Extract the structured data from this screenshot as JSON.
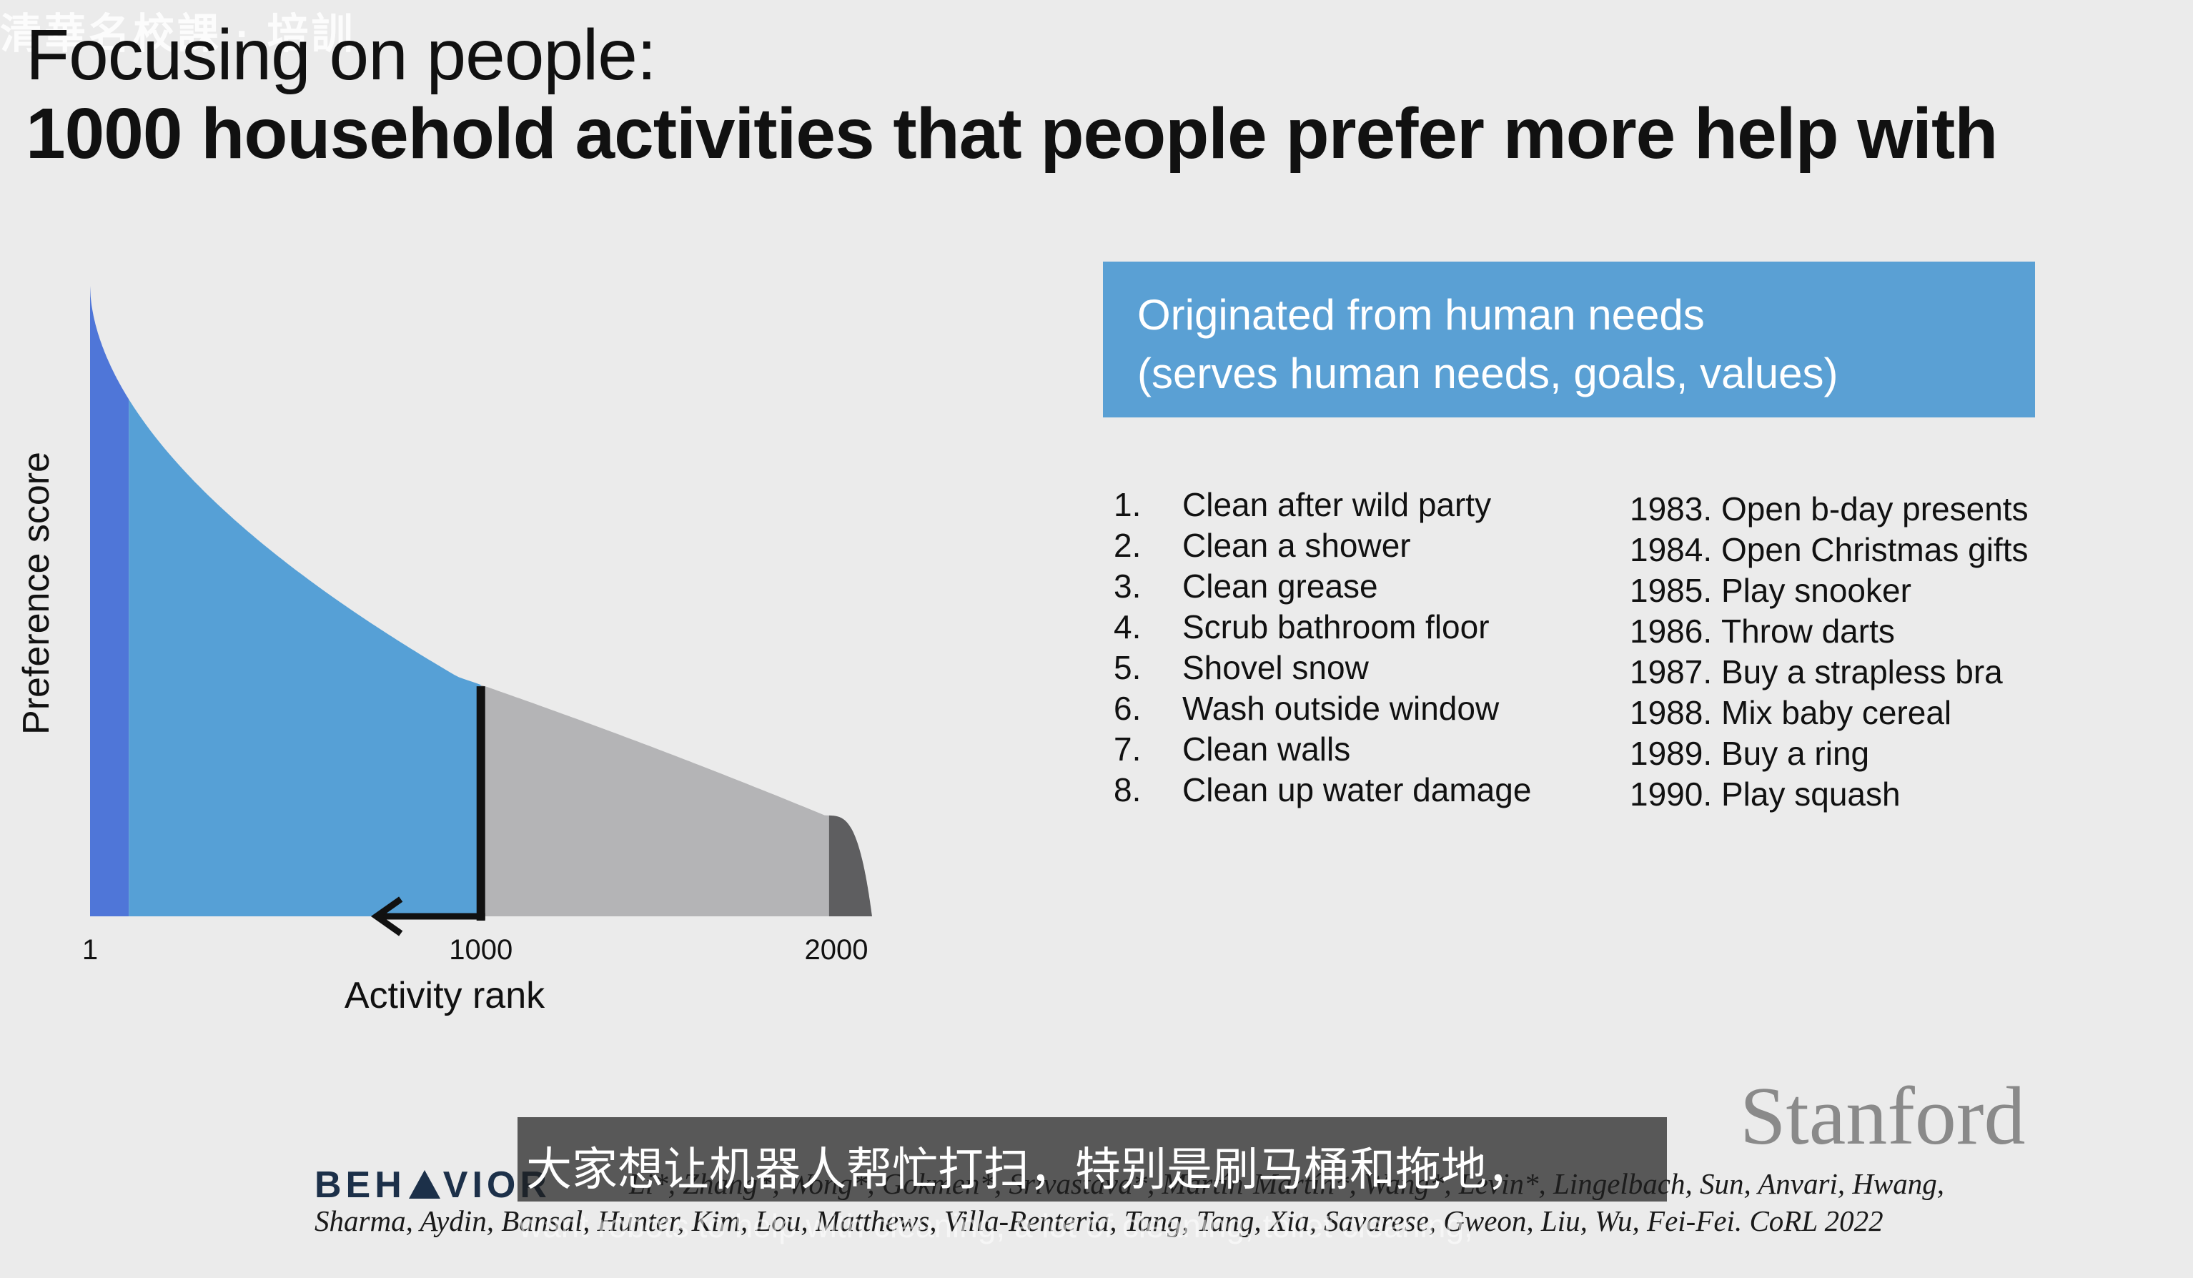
{
  "watermark": "清華名校課 · 培訓",
  "title_line1": "Focusing on people:",
  "title_line2": "1000 household activities that people prefer more help with",
  "callout": {
    "line1": "Originated from human needs",
    "line2": "(serves human needs, goals, values)",
    "color": "#5aa0d4"
  },
  "top_list": [
    {
      "num": "1.",
      "label": "Clean after wild party"
    },
    {
      "num": "2.",
      "label": "Clean a shower"
    },
    {
      "num": "3.",
      "label": "Clean grease"
    },
    {
      "num": "4.",
      "label": "Scrub bathroom floor"
    },
    {
      "num": "5.",
      "label": "Shovel snow"
    },
    {
      "num": "6.",
      "label": "Wash outside window"
    },
    {
      "num": "7.",
      "label": "Clean walls"
    },
    {
      "num": "8.",
      "label": "Clean up water damage"
    }
  ],
  "bottom_list": [
    {
      "num": "1983.",
      "label": "Open b-day presents"
    },
    {
      "num": "1984.",
      "label": "Open Christmas gifts"
    },
    {
      "num": "1985.",
      "label": "Play snooker"
    },
    {
      "num": "1986.",
      "label": "Throw darts"
    },
    {
      "num": "1987.",
      "label": "Buy a strapless bra"
    },
    {
      "num": "1988.",
      "label": "Mix baby cereal"
    },
    {
      "num": "1989.",
      "label": "Buy a ring"
    },
    {
      "num": "1990.",
      "label": "Play squash"
    }
  ],
  "chart_data": {
    "type": "area",
    "xlabel": "Activity rank",
    "ylabel": "Preference score",
    "x_ticks": [
      "1",
      "1000",
      "2000"
    ],
    "xlim": [
      1,
      2000
    ],
    "cutoff_rank": 1000,
    "regions": [
      {
        "from": 1,
        "to": 100,
        "color": "#4f76d8"
      },
      {
        "from": 100,
        "to": 1000,
        "color": "#56a0d6"
      },
      {
        "from": 1000,
        "to": 1890,
        "color": "#b4b4b6"
      },
      {
        "from": 1890,
        "to": 2000,
        "color": "#5e5e60"
      }
    ],
    "grid": false
  },
  "subtitle_cn": "大家想让机器人帮忙打扫，特别是刷马桶和拖地，",
  "subtitle_en_faint": "want robots to help with cleaning, a lot of cleaning, toilet cleaning,",
  "behavior_logo": {
    "left": "BEH",
    "right": "VIOR"
  },
  "citation_line1": "Li*, Zhang*, Wong*, Gokmen*, Srivastava*, Martín-Martín*, Wang*, Levin*, Lingelbach, Sun, Anvari, Hwang,",
  "citation_line2": "Sharma, Aydin, Bansal, Hunter, Kim, Lou, Matthews, Villa-Renteria, Tang, Tang, Xia, Savarese, Gweon, Liu, Wu, Fei-Fei. CoRL 2022",
  "stanford_logo": "Stanford"
}
